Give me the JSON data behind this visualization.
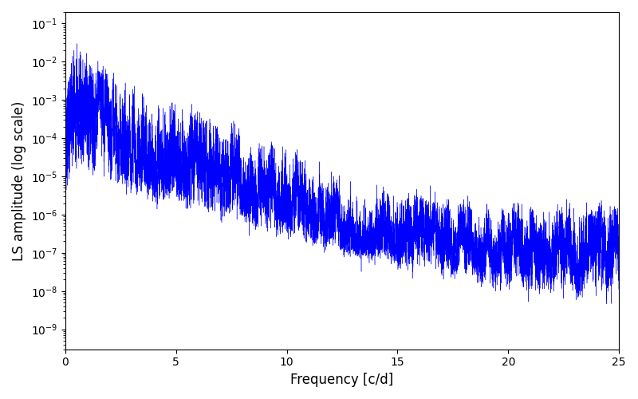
{
  "title": "",
  "xlabel": "Frequency [c/d]",
  "ylabel": "LS amplitude (log scale)",
  "xlim": [
    0,
    25
  ],
  "ylim": [
    3e-10,
    0.2
  ],
  "line_color": "#0000ff",
  "line_width": 0.3,
  "background_color": "#ffffff",
  "n_points": 15000,
  "freq_max": 25.0,
  "seed": 137,
  "figsize": [
    8.0,
    5.0
  ],
  "dpi": 100
}
